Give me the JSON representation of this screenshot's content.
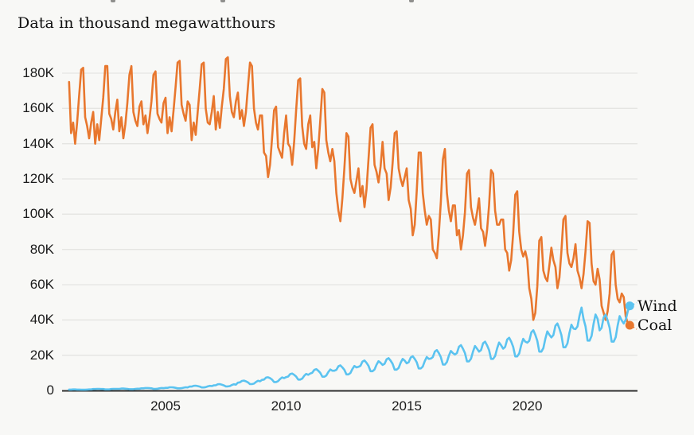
{
  "page": {
    "background": "#f8f8f6"
  },
  "header": {
    "subtitle": "Data in thousand megawatthours"
  },
  "legend": {
    "items": [
      {
        "label": "Wind",
        "color": "#5bc3f0"
      },
      {
        "label": "Coal",
        "color": "#e8772e"
      }
    ]
  },
  "colors": {
    "coal": "#e8772e",
    "wind": "#5bc3f0",
    "grid": "#e5e5e2",
    "axis": "#2e2e2e",
    "text": "#1b1b1b"
  },
  "chart_data": {
    "type": "line",
    "title": "Data in thousand megawatthours",
    "unit": "thousand megawatthours",
    "grid": "horizontal",
    "x_ticks": [
      2005,
      2010,
      2015,
      2020
    ],
    "y_ticks": [
      {
        "label": "0",
        "value": 0
      },
      {
        "label": "20K",
        "value": 20
      },
      {
        "label": "40K",
        "value": 40
      },
      {
        "label": "60K",
        "value": 60
      },
      {
        "label": "80K",
        "value": 80
      },
      {
        "label": "100K",
        "value": 100
      },
      {
        "label": "120K",
        "value": 120
      },
      {
        "label": "140K",
        "value": 140
      },
      {
        "label": "160K",
        "value": 160
      },
      {
        "label": "180K",
        "value": 180
      }
    ],
    "x_range": [
      2001.0,
      2024.33
    ],
    "y_range": [
      0,
      180
    ],
    "series": [
      {
        "name": "Coal",
        "color": "#e8772e",
        "start_year": 2001,
        "monthly_by_year": {
          "2001": [
            175,
            146,
            152,
            140,
            152,
            167,
            182,
            183,
            155,
            150,
            143,
            152
          ],
          "2002": [
            158,
            140,
            151,
            142,
            154,
            166,
            184,
            184,
            157,
            154,
            148,
            158
          ],
          "2003": [
            165,
            147,
            155,
            143,
            151,
            163,
            179,
            184,
            158,
            153,
            150,
            161
          ],
          "2004": [
            164,
            151,
            156,
            146,
            154,
            164,
            179,
            181,
            157,
            154,
            152,
            163
          ],
          "2005": [
            166,
            146,
            155,
            147,
            159,
            172,
            186,
            187,
            162,
            157,
            153,
            164
          ],
          "2006": [
            162,
            142,
            152,
            145,
            158,
            171,
            185,
            186,
            160,
            152,
            151,
            158
          ],
          "2007": [
            167,
            148,
            158,
            149,
            161,
            171,
            188,
            189,
            167,
            158,
            155,
            164
          ],
          "2008": [
            169,
            154,
            159,
            150,
            158,
            172,
            186,
            184,
            160,
            152,
            148,
            156
          ],
          "2009": [
            156,
            135,
            133,
            121,
            128,
            143,
            159,
            161,
            138,
            135,
            132,
            146
          ],
          "2010": [
            156,
            140,
            138,
            128,
            141,
            159,
            176,
            177,
            150,
            140,
            137,
            151
          ],
          "2011": [
            156,
            138,
            141,
            126,
            137,
            153,
            171,
            169,
            142,
            135,
            130,
            137
          ],
          "2012": [
            130,
            112,
            102,
            96,
            109,
            126,
            146,
            144,
            120,
            115,
            112,
            119
          ],
          "2013": [
            126,
            110,
            116,
            104,
            114,
            131,
            149,
            151,
            128,
            124,
            118,
            127
          ],
          "2014": [
            141,
            126,
            123,
            108,
            115,
            129,
            146,
            147,
            126,
            120,
            116,
            121
          ],
          "2015": [
            126,
            108,
            103,
            88,
            94,
            113,
            135,
            135,
            112,
            102,
            94,
            99
          ],
          "2016": [
            97,
            80,
            78,
            75,
            89,
            107,
            131,
            137,
            112,
            102,
            96,
            105
          ],
          "2017": [
            105,
            88,
            91,
            80,
            88,
            101,
            123,
            125,
            104,
            98,
            94,
            101
          ],
          "2018": [
            109,
            92,
            90,
            82,
            91,
            105,
            125,
            123,
            102,
            94,
            94,
            97
          ],
          "2019": [
            97,
            80,
            78,
            68,
            74,
            89,
            111,
            113,
            90,
            80,
            76,
            79
          ],
          "2020": [
            74,
            58,
            52,
            40,
            44,
            59,
            85,
            87,
            68,
            64,
            62,
            71
          ],
          "2021": [
            81,
            74,
            70,
            58,
            64,
            79,
            97,
            99,
            78,
            72,
            70,
            75
          ],
          "2022": [
            83,
            68,
            64,
            58,
            66,
            79,
            96,
            95,
            72,
            62,
            60,
            69
          ],
          "2023": [
            63,
            48,
            44,
            40,
            45,
            55,
            77,
            79,
            60,
            52,
            50,
            55
          ],
          "2024": [
            53,
            42,
            38,
            37
          ]
        },
        "end_value": 37,
        "end_label": "Coal"
      },
      {
        "name": "Wind",
        "color": "#5bc3f0",
        "start_year": 2001,
        "monthly_by_year": {
          "2001": [
            0.5,
            0.5,
            0.6,
            0.6,
            0.5,
            0.5,
            0.4,
            0.4,
            0.4,
            0.5,
            0.6,
            0.6
          ],
          "2002": [
            0.8,
            0.8,
            0.9,
            0.9,
            0.8,
            0.8,
            0.6,
            0.6,
            0.6,
            0.8,
            0.9,
            0.9
          ],
          "2003": [
            0.9,
            0.9,
            1.1,
            1.1,
            1.0,
            0.9,
            0.7,
            0.7,
            0.7,
            0.9,
            1.0,
            1.0
          ],
          "2004": [
            1.2,
            1.2,
            1.4,
            1.4,
            1.3,
            1.2,
            0.9,
            0.9,
            1.0,
            1.2,
            1.4,
            1.3
          ],
          "2005": [
            1.5,
            1.5,
            1.8,
            1.8,
            1.7,
            1.5,
            1.2,
            1.2,
            1.3,
            1.6,
            1.8,
            1.7
          ],
          "2006": [
            2.2,
            2.2,
            2.6,
            2.7,
            2.5,
            2.2,
            1.7,
            1.7,
            1.9,
            2.3,
            2.6,
            2.5
          ],
          "2007": [
            2.9,
            3.0,
            3.5,
            3.6,
            3.3,
            2.9,
            2.3,
            2.3,
            2.5,
            3.1,
            3.5,
            3.3
          ],
          "2008": [
            4.4,
            4.6,
            5.4,
            5.6,
            5.2,
            4.6,
            3.6,
            3.6,
            3.9,
            4.8,
            5.5,
            5.2
          ],
          "2009": [
            6.0,
            6.2,
            7.3,
            7.5,
            7.0,
            6.2,
            4.8,
            4.8,
            5.3,
            6.5,
            7.4,
            7.0
          ],
          "2010": [
            7.6,
            7.9,
            9.3,
            9.6,
            8.9,
            7.9,
            6.2,
            6.2,
            6.7,
            8.3,
            9.4,
            8.9
          ],
          "2011": [
            9.6,
            10.0,
            11.7,
            12.1,
            11.2,
            10.0,
            7.8,
            7.8,
            8.5,
            10.4,
            11.9,
            11.2
          ],
          "2012": [
            11.2,
            11.7,
            13.7,
            14.2,
            13.1,
            11.7,
            9.1,
            9.1,
            9.9,
            12.2,
            13.9,
            13.1
          ],
          "2013": [
            13.4,
            14.0,
            16.4,
            17.0,
            15.7,
            14.0,
            10.9,
            10.9,
            11.9,
            14.6,
            16.6,
            15.7
          ],
          "2014": [
            14.5,
            15.1,
            17.7,
            18.3,
            16.9,
            15.1,
            11.8,
            11.8,
            12.8,
            15.7,
            17.9,
            16.9
          ],
          "2015": [
            15.4,
            16.0,
            18.7,
            19.4,
            17.9,
            16.0,
            12.5,
            12.5,
            13.6,
            16.6,
            19.0,
            17.9
          ],
          "2016": [
            18.1,
            18.9,
            22.1,
            22.9,
            21.2,
            18.9,
            14.7,
            14.7,
            16.1,
            19.7,
            22.4,
            21.2
          ],
          "2017": [
            20.4,
            21.2,
            24.8,
            25.7,
            23.7,
            21.2,
            16.5,
            16.5,
            18.0,
            22.0,
            25.2,
            23.7
          ],
          "2018": [
            22.0,
            22.9,
            26.8,
            27.7,
            25.6,
            22.9,
            17.9,
            17.9,
            19.5,
            23.8,
            27.2,
            25.6
          ],
          "2019": [
            23.7,
            24.7,
            28.9,
            29.9,
            27.7,
            24.7,
            19.3,
            19.3,
            21.0,
            25.7,
            29.3,
            27.7
          ],
          "2020": [
            27.1,
            28.2,
            33.0,
            34.2,
            31.6,
            28.2,
            22.0,
            22.0,
            24.0,
            29.3,
            33.5,
            31.6
          ],
          "2021": [
            30.1,
            31.4,
            36.7,
            38.0,
            35.1,
            31.4,
            24.5,
            24.5,
            26.7,
            32.7,
            37.3,
            35.1
          ],
          "2022": [
            34.8,
            36.3,
            42.5,
            47.0,
            40.6,
            36.3,
            28.3,
            28.3,
            30.9,
            37.8,
            43.1,
            40.6
          ],
          "2023": [
            34.1,
            35.5,
            41.5,
            43.0,
            39.7,
            35.5,
            27.7,
            27.7,
            30.2,
            36.9,
            42.2,
            39.7
          ],
          "2024": [
            38,
            40,
            45,
            48
          ]
        },
        "end_value": 48,
        "end_label": "Wind"
      }
    ]
  }
}
